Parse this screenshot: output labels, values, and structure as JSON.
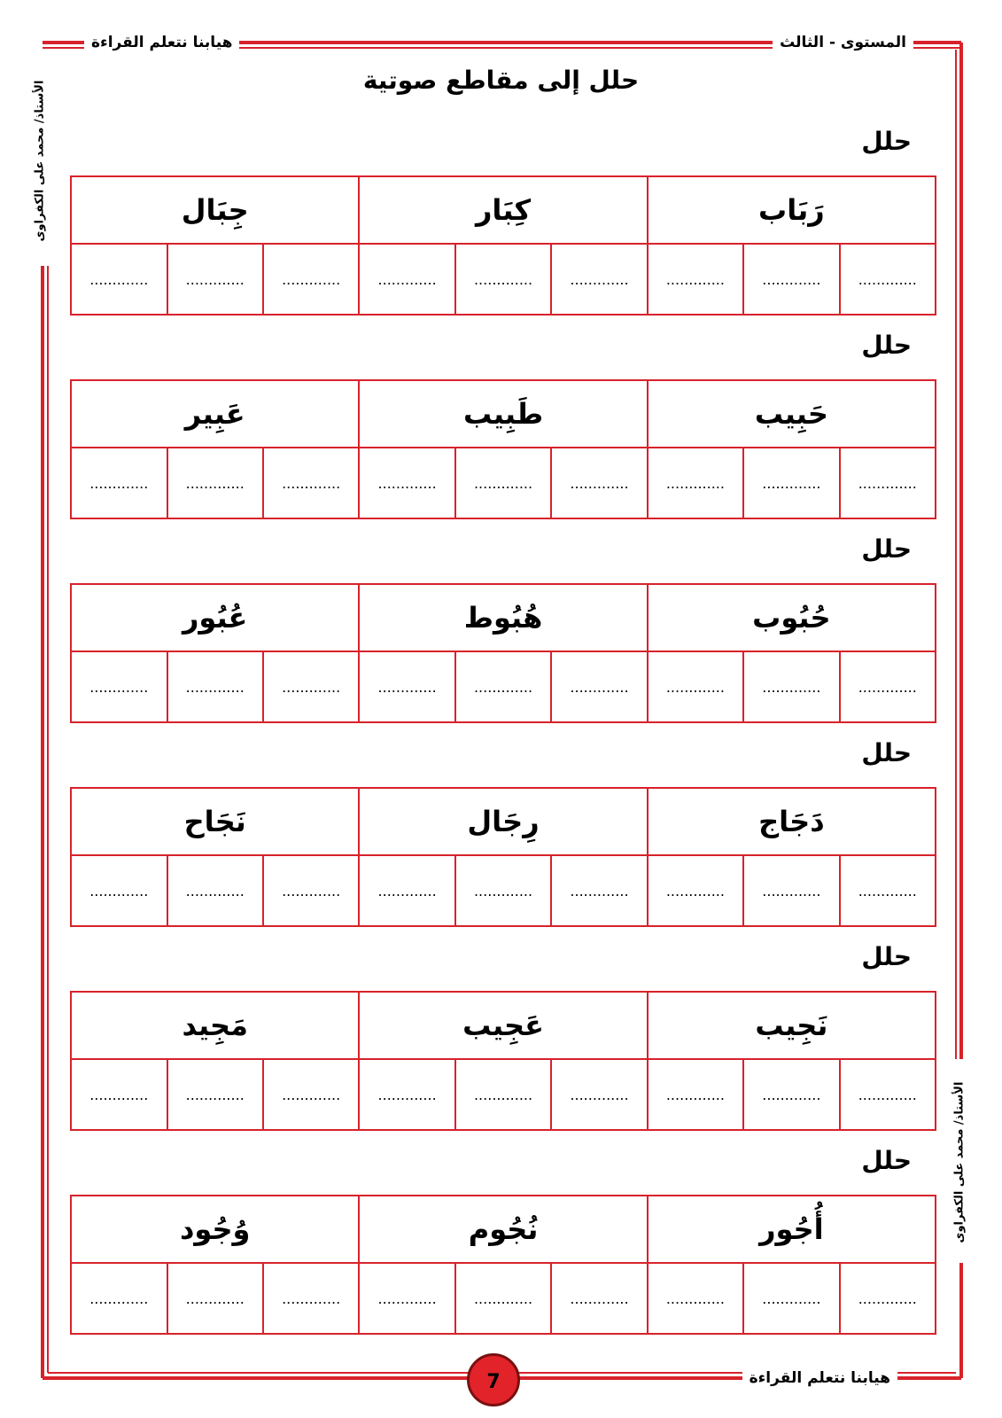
{
  "header": {
    "level": "المستوى - الثالث",
    "series": "هيابنا نتعلم القراءة"
  },
  "title": "حلل إلى مقاطع صوتية",
  "teacher": "الأستاذ/ محمد على الكفراوى",
  "blank": ".............",
  "sections": [
    {
      "label": "حلل",
      "words": [
        "رَبَاب",
        "كِبَار",
        "جِبَال"
      ]
    },
    {
      "label": "حلل",
      "words": [
        "حَبِيب",
        "طَبِيب",
        "عَبِير"
      ]
    },
    {
      "label": "حلل",
      "words": [
        "حُبُوب",
        "هُبُوط",
        "عُبُور"
      ]
    },
    {
      "label": "حلل",
      "words": [
        "دَجَاج",
        "رِجَال",
        "نَجَاح"
      ]
    },
    {
      "label": "حلل",
      "words": [
        "نَجِيب",
        "عَجِيب",
        "مَجِيد"
      ]
    },
    {
      "label": "حلل",
      "words": [
        "أُجُور",
        "نُجُوم",
        "وُجُود"
      ]
    }
  ],
  "footer": {
    "series": "هيابنا نتعلم القراءة",
    "page": "7"
  }
}
